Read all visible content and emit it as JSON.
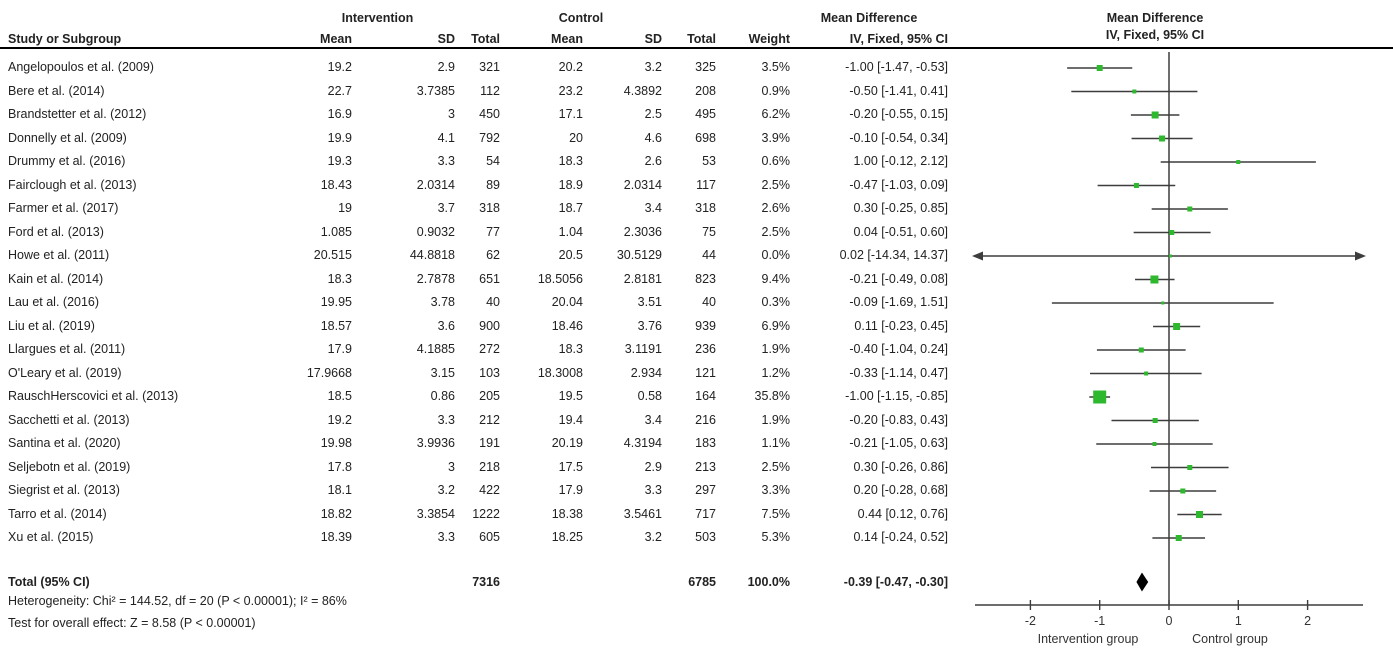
{
  "header": {
    "study_col": "Study or Subgroup",
    "group1_label": "Intervention",
    "group2_label": "Control",
    "col_mean": "Mean",
    "col_sd": "SD",
    "col_total": "Total",
    "col_weight": "Weight",
    "md_label_text_col": "Mean Difference",
    "md_label_plot_col": "Mean Difference",
    "method_text_col": "IV, Fixed, 95% CI",
    "method_plot_col": "IV, Fixed, 95% CI"
  },
  "chart_data": {
    "type": "forest",
    "effect_measure": "Mean Difference",
    "model": "IV, Fixed, 95% CI",
    "studies": [
      {
        "name": "Angelopoulos et al. (2009)",
        "i_mean": "19.2",
        "i_sd": "2.9",
        "i_total": "321",
        "c_mean": "20.2",
        "c_sd": "3.2",
        "c_total": "325",
        "weight": "3.5%",
        "ci_label": "-1.00 [-1.47, -0.53]",
        "est": -1.0,
        "lo": -1.47,
        "hi": -0.53,
        "weight_pct": 3.5
      },
      {
        "name": "Bere et al. (2014)",
        "i_mean": "22.7",
        "i_sd": "3.7385",
        "i_total": "112",
        "c_mean": "23.2",
        "c_sd": "4.3892",
        "c_total": "208",
        "weight": "0.9%",
        "ci_label": "-0.50 [-1.41, 0.41]",
        "est": -0.5,
        "lo": -1.41,
        "hi": 0.41,
        "weight_pct": 0.9
      },
      {
        "name": "Brandstetter et al. (2012)",
        "i_mean": "16.9",
        "i_sd": "3",
        "i_total": "450",
        "c_mean": "17.1",
        "c_sd": "2.5",
        "c_total": "495",
        "weight": "6.2%",
        "ci_label": "-0.20 [-0.55, 0.15]",
        "est": -0.2,
        "lo": -0.55,
        "hi": 0.15,
        "weight_pct": 6.2
      },
      {
        "name": "Donnelly et al. (2009)",
        "i_mean": "19.9",
        "i_sd": "4.1",
        "i_total": "792",
        "c_mean": "20",
        "c_sd": "4.6",
        "c_total": "698",
        "weight": "3.9%",
        "ci_label": "-0.10 [-0.54, 0.34]",
        "est": -0.1,
        "lo": -0.54,
        "hi": 0.34,
        "weight_pct": 3.9
      },
      {
        "name": "Drummy et al. (2016)",
        "i_mean": "19.3",
        "i_sd": "3.3",
        "i_total": "54",
        "c_mean": "18.3",
        "c_sd": "2.6",
        "c_total": "53",
        "weight": "0.6%",
        "ci_label": "1.00 [-0.12, 2.12]",
        "est": 1.0,
        "lo": -0.12,
        "hi": 2.12,
        "weight_pct": 0.6
      },
      {
        "name": "Fairclough et al. (2013)",
        "i_mean": "18.43",
        "i_sd": "2.0314",
        "i_total": "89",
        "c_mean": "18.9",
        "c_sd": "2.0314",
        "c_total": "117",
        "weight": "2.5%",
        "ci_label": "-0.47 [-1.03, 0.09]",
        "est": -0.47,
        "lo": -1.03,
        "hi": 0.09,
        "weight_pct": 2.5
      },
      {
        "name": "Farmer et al. (2017)",
        "i_mean": "19",
        "i_sd": "3.7",
        "i_total": "318",
        "c_mean": "18.7",
        "c_sd": "3.4",
        "c_total": "318",
        "weight": "2.6%",
        "ci_label": "0.30 [-0.25, 0.85]",
        "est": 0.3,
        "lo": -0.25,
        "hi": 0.85,
        "weight_pct": 2.6
      },
      {
        "name": "Ford et al. (2013)",
        "i_mean": "1.085",
        "i_sd": "0.9032",
        "i_total": "77",
        "c_mean": "1.04",
        "c_sd": "2.3036",
        "c_total": "75",
        "weight": "2.5%",
        "ci_label": "0.04 [-0.51, 0.60]",
        "est": 0.04,
        "lo": -0.51,
        "hi": 0.6,
        "weight_pct": 2.5
      },
      {
        "name": "Howe et al. (2011)",
        "i_mean": "20.515",
        "i_sd": "44.8818",
        "i_total": "62",
        "c_mean": "20.5",
        "c_sd": "30.5129",
        "c_total": "44",
        "weight": "0.0%",
        "ci_label": "0.02 [-14.34, 14.37]",
        "est": 0.02,
        "lo": -14.34,
        "hi": 14.37,
        "weight_pct": 0.0
      },
      {
        "name": "Kain et al. (2014)",
        "i_mean": "18.3",
        "i_sd": "2.7878",
        "i_total": "651",
        "c_mean": "18.5056",
        "c_sd": "2.8181",
        "c_total": "823",
        "weight": "9.4%",
        "ci_label": "-0.21 [-0.49, 0.08]",
        "est": -0.21,
        "lo": -0.49,
        "hi": 0.08,
        "weight_pct": 9.4
      },
      {
        "name": "Lau et al. (2016)",
        "i_mean": "19.95",
        "i_sd": "3.78",
        "i_total": "40",
        "c_mean": "20.04",
        "c_sd": "3.51",
        "c_total": "40",
        "weight": "0.3%",
        "ci_label": "-0.09 [-1.69, 1.51]",
        "est": -0.09,
        "lo": -1.69,
        "hi": 1.51,
        "weight_pct": 0.3
      },
      {
        "name": "Liu et al. (2019)",
        "i_mean": "18.57",
        "i_sd": "3.6",
        "i_total": "900",
        "c_mean": "18.46",
        "c_sd": "3.76",
        "c_total": "939",
        "weight": "6.9%",
        "ci_label": "0.11 [-0.23, 0.45]",
        "est": 0.11,
        "lo": -0.23,
        "hi": 0.45,
        "weight_pct": 6.9
      },
      {
        "name": "Llargues et al. (2011)",
        "i_mean": "17.9",
        "i_sd": "4.1885",
        "i_total": "272",
        "c_mean": "18.3",
        "c_sd": "3.1191",
        "c_total": "236",
        "weight": "1.9%",
        "ci_label": "-0.40 [-1.04, 0.24]",
        "est": -0.4,
        "lo": -1.04,
        "hi": 0.24,
        "weight_pct": 1.9
      },
      {
        "name": "O'Leary et al. (2019)",
        "i_mean": "17.9668",
        "i_sd": "3.15",
        "i_total": "103",
        "c_mean": "18.3008",
        "c_sd": "2.934",
        "c_total": "121",
        "weight": "1.2%",
        "ci_label": "-0.33 [-1.14, 0.47]",
        "est": -0.33,
        "lo": -1.14,
        "hi": 0.47,
        "weight_pct": 1.2
      },
      {
        "name": "RauschHerscovici et al. (2013)",
        "i_mean": "18.5",
        "i_sd": "0.86",
        "i_total": "205",
        "c_mean": "19.5",
        "c_sd": "0.58",
        "c_total": "164",
        "weight": "35.8%",
        "ci_label": "-1.00 [-1.15, -0.85]",
        "est": -1.0,
        "lo": -1.15,
        "hi": -0.85,
        "weight_pct": 35.8
      },
      {
        "name": "Sacchetti et al. (2013)",
        "i_mean": "19.2",
        "i_sd": "3.3",
        "i_total": "212",
        "c_mean": "19.4",
        "c_sd": "3.4",
        "c_total": "216",
        "weight": "1.9%",
        "ci_label": "-0.20 [-0.83, 0.43]",
        "est": -0.2,
        "lo": -0.83,
        "hi": 0.43,
        "weight_pct": 1.9
      },
      {
        "name": "Santina et al. (2020)",
        "i_mean": "19.98",
        "i_sd": "3.9936",
        "i_total": "191",
        "c_mean": "20.19",
        "c_sd": "4.3194",
        "c_total": "183",
        "weight": "1.1%",
        "ci_label": "-0.21 [-1.05, 0.63]",
        "est": -0.21,
        "lo": -1.05,
        "hi": 0.63,
        "weight_pct": 1.1
      },
      {
        "name": "Seljebotn et al. (2019)",
        "i_mean": "17.8",
        "i_sd": "3",
        "i_total": "218",
        "c_mean": "17.5",
        "c_sd": "2.9",
        "c_total": "213",
        "weight": "2.5%",
        "ci_label": "0.30 [-0.26, 0.86]",
        "est": 0.3,
        "lo": -0.26,
        "hi": 0.86,
        "weight_pct": 2.5
      },
      {
        "name": "Siegrist et al. (2013)",
        "i_mean": "18.1",
        "i_sd": "3.2",
        "i_total": "422",
        "c_mean": "17.9",
        "c_sd": "3.3",
        "c_total": "297",
        "weight": "3.3%",
        "ci_label": "0.20 [-0.28, 0.68]",
        "est": 0.2,
        "lo": -0.28,
        "hi": 0.68,
        "weight_pct": 3.3
      },
      {
        "name": "Tarro et al. (2014)",
        "i_mean": "18.82",
        "i_sd": "3.3854",
        "i_total": "1222",
        "c_mean": "18.38",
        "c_sd": "3.5461",
        "c_total": "717",
        "weight": "7.5%",
        "ci_label": "0.44 [0.12, 0.76]",
        "est": 0.44,
        "lo": 0.12,
        "hi": 0.76,
        "weight_pct": 7.5
      },
      {
        "name": "Xu et al. (2015)",
        "i_mean": "18.39",
        "i_sd": "3.3",
        "i_total": "605",
        "c_mean": "18.25",
        "c_sd": "3.2",
        "c_total": "503",
        "weight": "5.3%",
        "ci_label": "0.14 [-0.24, 0.52]",
        "est": 0.14,
        "lo": -0.24,
        "hi": 0.52,
        "weight_pct": 5.3
      }
    ],
    "total": {
      "label": "Total (95% CI)",
      "i_total": "7316",
      "c_total": "6785",
      "weight": "100.0%",
      "ci_label": "-0.39 [-0.47, -0.30]",
      "est": -0.39,
      "lo": -0.47,
      "hi": -0.3
    },
    "axis": {
      "ticks": [
        "-2",
        "-1",
        "0",
        "1",
        "2"
      ],
      "tick_values": [
        -2,
        -1,
        0,
        1,
        2
      ],
      "range": [
        -2.8,
        2.8
      ],
      "label_left": "Intervention group",
      "label_right": "Control group"
    },
    "colors": {
      "marker_green": "#2eb82e",
      "line_dark": "#3d3d3d",
      "diamond_black": "#000000"
    }
  },
  "footer": {
    "heterogeneity": "Heterogeneity: Chi² = 144.52, df = 20 (P < 0.00001); I² = 86%",
    "overall_effect": "Test for overall effect: Z = 8.58 (P < 0.00001)"
  }
}
